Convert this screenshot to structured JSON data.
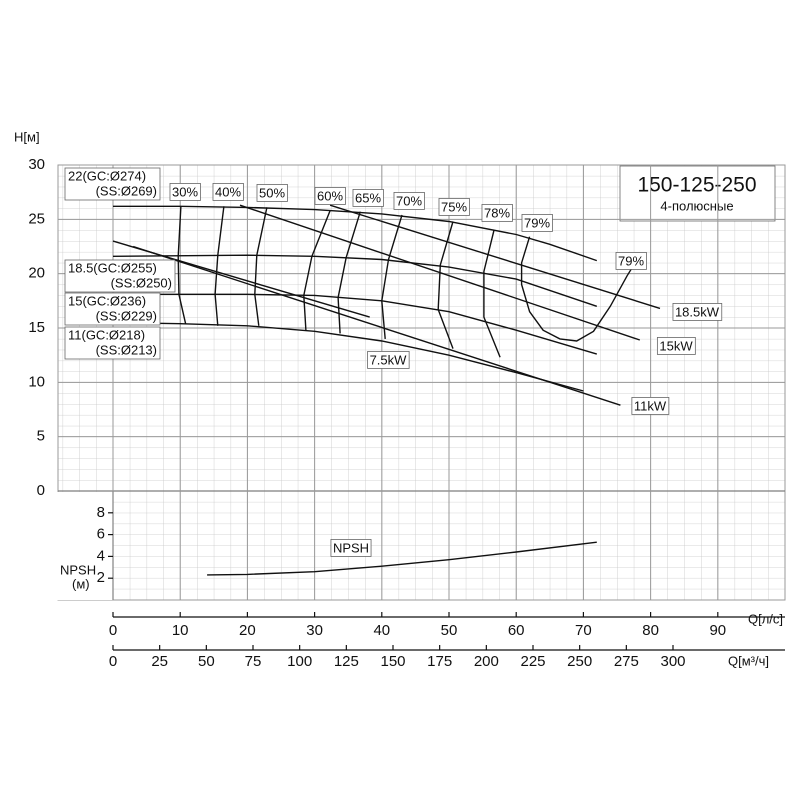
{
  "chart_data": {
    "type": "line",
    "title": "150-125-250",
    "subtitle": "4-полюсные",
    "y_label": "H[м]",
    "x_label": "Q[л/с]",
    "x2_label": "Q[м³/ч]",
    "xlim": [
      0,
      100
    ],
    "xticks": [
      0,
      10,
      20,
      30,
      40,
      50,
      60,
      70,
      80,
      90
    ],
    "x2lim": [
      0,
      360
    ],
    "x2ticks": [
      0,
      25,
      50,
      75,
      100,
      125,
      150,
      175,
      200,
      225,
      250,
      275,
      300
    ],
    "ylim": [
      0,
      30
    ],
    "yticks": [
      0,
      5,
      10,
      15,
      20,
      25,
      30
    ],
    "head_curves": [
      {
        "name": "22(GC:Ø274)",
        "name2": "(SS:Ø269)",
        "x": [
          0,
          10,
          20,
          30,
          40,
          50,
          60,
          65,
          72
        ],
        "values": [
          26.2,
          26.2,
          26.1,
          25.9,
          25.5,
          24.8,
          23.6,
          22.7,
          21.2
        ]
      },
      {
        "name": "18.5(GC:Ø255)",
        "name2": "(SS:Ø250)",
        "x": [
          0,
          20,
          30,
          40,
          50,
          60,
          72
        ],
        "values": [
          21.6,
          21.7,
          21.6,
          21.3,
          20.6,
          19.5,
          17.0
        ]
      },
      {
        "name": "15(GC:Ø236)",
        "name2": "(SS:Ø229)",
        "x": [
          0,
          20,
          30,
          40,
          50,
          60,
          72
        ],
        "values": [
          18.1,
          18.1,
          18.0,
          17.5,
          16.5,
          14.8,
          12.6
        ]
      },
      {
        "name": "11(GC:Ø218)",
        "name2": "(SS:Ø213)",
        "x": [
          0,
          10,
          20,
          30,
          40,
          50,
          60,
          70
        ],
        "values": [
          15.5,
          15.4,
          15.2,
          14.7,
          13.8,
          12.5,
          10.9,
          9.2
        ]
      }
    ],
    "efficiency": [
      {
        "label": "30%",
        "x": [
          10.1,
          9.7,
          9.8,
          10.8
        ],
        "values": [
          26.2,
          21.6,
          18.1,
          15.4
        ]
      },
      {
        "label": "40%",
        "x": [
          16.5,
          15.6,
          15.2,
          15.6
        ],
        "values": [
          26.2,
          21.7,
          18.1,
          15.2
        ]
      },
      {
        "label": "50%",
        "x": [
          22.9,
          21.4,
          21.1,
          21.7
        ],
        "values": [
          26.1,
          21.7,
          18.1,
          15.2
        ]
      },
      {
        "label": "60%",
        "x": [
          32.3,
          29.6,
          28.4,
          28.7
        ],
        "values": [
          25.8,
          21.6,
          18.0,
          14.8
        ]
      },
      {
        "label": "65%",
        "x": [
          36.8,
          34.7,
          33.5,
          33.8
        ],
        "values": [
          25.7,
          21.5,
          17.8,
          14.5
        ]
      },
      {
        "label": "70%",
        "x": [
          43.0,
          41.0,
          40.0,
          40.5
        ],
        "values": [
          25.4,
          21.3,
          17.5,
          14.0
        ]
      },
      {
        "label": "75%",
        "x": [
          50.6,
          48.7,
          48.4,
          50.6
        ],
        "values": [
          24.8,
          20.8,
          16.7,
          13.1
        ]
      },
      {
        "label": "78%",
        "x": [
          56.7,
          55.2,
          55.2,
          57.6
        ],
        "values": [
          24.0,
          20.2,
          16.0,
          12.3
        ]
      },
      {
        "label": "79%",
        "label2": "79%",
        "x": [
          62,
          60.8,
          60.8,
          62,
          64,
          66.5,
          69,
          71.5,
          74,
          76.5,
          78
        ],
        "values": [
          23.4,
          21,
          19,
          16.5,
          14.8,
          14,
          13.8,
          14.7,
          17,
          19.8,
          21.3
        ]
      }
    ],
    "power": [
      {
        "label": "7.5kW",
        "x": [
          0,
          38.2
        ],
        "values": [
          23.0,
          16.0
        ]
      },
      {
        "label": "11kW",
        "x": [
          3,
          75.5
        ],
        "values": [
          22.5,
          7.9
        ]
      },
      {
        "label": "15kW",
        "x": [
          18.9,
          78.4
        ],
        "values": [
          26.3,
          13.9
        ]
      },
      {
        "label": "18.5kW",
        "x": [
          32.3,
          81.4
        ],
        "values": [
          26.3,
          16.8
        ]
      }
    ],
    "npsh": {
      "label": "NPSH",
      "y_label": "NPSH",
      "y_unit": "(м)",
      "ylim": [
        0,
        10
      ],
      "yticks": [
        2,
        4,
        6,
        8
      ],
      "x": [
        14,
        20,
        30,
        40,
        50,
        60,
        72
      ],
      "values": [
        2.3,
        2.35,
        2.6,
        3.1,
        3.7,
        4.4,
        5.3
      ]
    }
  }
}
